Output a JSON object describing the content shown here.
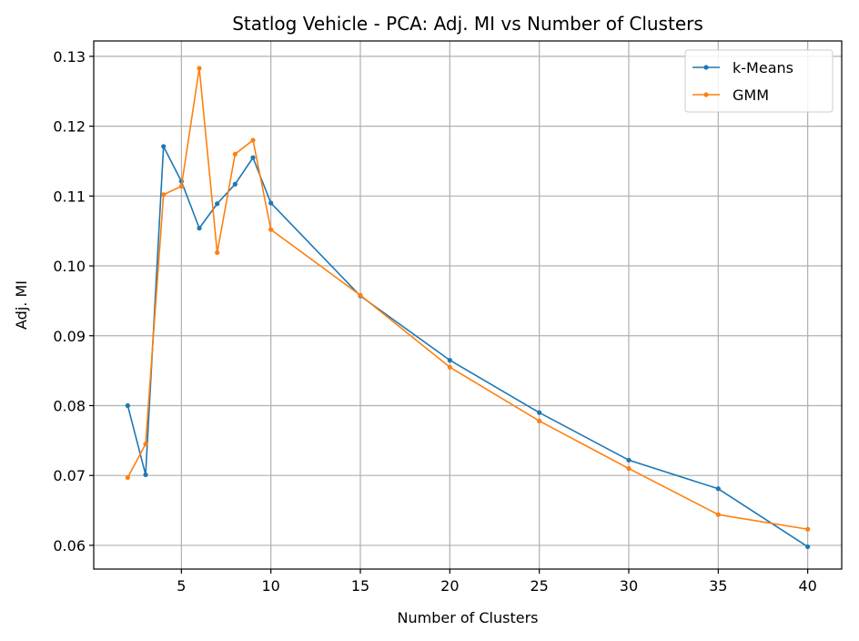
{
  "chart_data": {
    "type": "line",
    "title": "Statlog Vehicle - PCA: Adj. MI vs Number of Clusters",
    "xlabel": "Number of Clusters",
    "ylabel": "Adj. MI",
    "xlim": [
      0.1,
      41.9
    ],
    "ylim": [
      0.0566,
      0.1322
    ],
    "xticks": [
      5,
      10,
      15,
      20,
      25,
      30,
      35,
      40
    ],
    "yticks": [
      0.06,
      0.07,
      0.08,
      0.09,
      0.1,
      0.11,
      0.12,
      0.13
    ],
    "ytick_labels": [
      "0.06",
      "0.07",
      "0.08",
      "0.09",
      "0.10",
      "0.11",
      "0.12",
      "0.13"
    ],
    "grid": true,
    "legend_position": "top-right",
    "x": [
      2,
      3,
      4,
      5,
      6,
      7,
      8,
      9,
      10,
      15,
      20,
      25,
      30,
      35,
      40
    ],
    "series": [
      {
        "name": "k-Means",
        "color": "#1f77b4",
        "values": [
          0.08,
          0.0701,
          0.1171,
          0.1121,
          0.1054,
          0.1089,
          0.1117,
          0.1155,
          0.109,
          0.0957,
          0.0865,
          0.079,
          0.0722,
          0.0681,
          0.0598
        ]
      },
      {
        "name": "GMM",
        "color": "#ff7f0e",
        "values": [
          0.0697,
          0.0745,
          0.1102,
          0.1114,
          0.1283,
          0.1019,
          0.116,
          0.118,
          0.1052,
          0.0958,
          0.0855,
          0.0778,
          0.071,
          0.0644,
          0.0623
        ]
      }
    ]
  }
}
